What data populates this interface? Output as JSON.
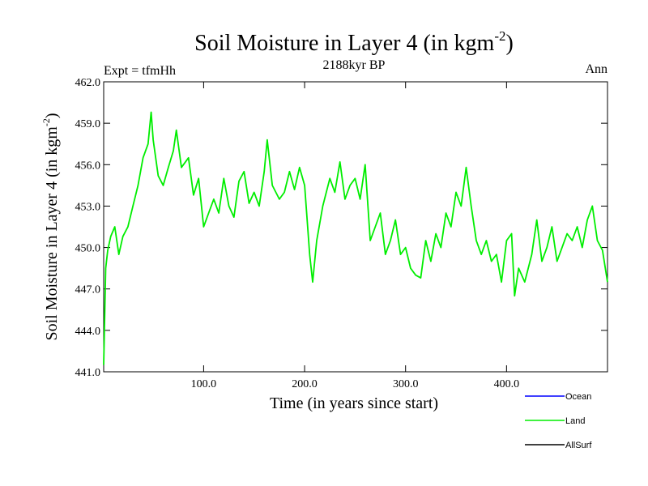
{
  "header": {
    "title_main": "Soil Moisture in Layer 4 (in kgm",
    "title_sup": "-2",
    "title_close": ")",
    "expt_label": "Expt = tfmHh",
    "period_label": "2188kyr BP",
    "season_label": "Ann"
  },
  "colors": {
    "ocean": "#0000ff",
    "land": "#00ee00",
    "allsurf": "#000000",
    "axis": "#000000"
  },
  "chart_data": {
    "type": "line",
    "title": "Soil Moisture in Layer 4 (in kgm-2)",
    "xlabel": "Time (in years since start)",
    "ylabel_main": "Soil Moisture in Layer 4 (in kgm",
    "ylabel_sup": "-2",
    "ylabel_close": ")",
    "xlim": [
      1,
      500
    ],
    "ylim": [
      441.0,
      462.0
    ],
    "x_ticks": [
      100,
      200,
      300,
      400
    ],
    "x_tick_labels": [
      "100.0",
      "200.0",
      "300.0",
      "400.0"
    ],
    "y_ticks": [
      441,
      444,
      447,
      450,
      453,
      456,
      459,
      462
    ],
    "y_tick_labels": [
      "441.0",
      "444.0",
      "447.0",
      "450.0",
      "453.0",
      "456.0",
      "459.0",
      "462.0"
    ],
    "series": [
      {
        "name": "Land",
        "color": "#00ee00",
        "x": [
          1,
          3,
          5,
          8,
          12,
          16,
          20,
          25,
          30,
          35,
          40,
          45,
          48,
          50,
          55,
          60,
          65,
          70,
          73,
          78,
          85,
          90,
          95,
          100,
          105,
          110,
          115,
          120,
          125,
          130,
          135,
          140,
          145,
          150,
          155,
          160,
          163,
          168,
          175,
          180,
          185,
          190,
          195,
          200,
          205,
          208,
          212,
          218,
          225,
          230,
          235,
          240,
          245,
          250,
          255,
          260,
          265,
          270,
          275,
          280,
          285,
          290,
          295,
          300,
          305,
          310,
          315,
          320,
          325,
          330,
          335,
          340,
          345,
          350,
          355,
          360,
          365,
          370,
          375,
          380,
          385,
          390,
          395,
          400,
          405,
          408,
          412,
          418,
          425,
          430,
          435,
          440,
          445,
          450,
          455,
          460,
          465,
          470,
          475,
          480,
          485,
          490,
          495,
          500
        ],
        "values": [
          441.5,
          448.5,
          449.8,
          450.8,
          451.5,
          449.5,
          450.8,
          451.5,
          453.0,
          454.5,
          456.5,
          457.5,
          459.8,
          457.8,
          455.2,
          454.5,
          455.8,
          457.0,
          458.5,
          455.8,
          456.5,
          453.8,
          455.0,
          451.5,
          452.5,
          453.5,
          452.5,
          455.0,
          453.0,
          452.2,
          454.8,
          455.5,
          453.2,
          454.0,
          453.0,
          455.5,
          457.8,
          454.5,
          453.5,
          454.0,
          455.5,
          454.2,
          455.8,
          454.5,
          449.5,
          447.5,
          450.5,
          453.0,
          455.0,
          454.0,
          456.2,
          453.5,
          454.5,
          455.0,
          453.5,
          456.0,
          450.5,
          451.5,
          452.5,
          449.5,
          450.5,
          452.0,
          449.5,
          450.0,
          448.5,
          448.0,
          447.8,
          450.5,
          449.0,
          451.0,
          450.0,
          452.5,
          451.5,
          454.0,
          453.0,
          455.8,
          453.0,
          450.5,
          449.5,
          450.5,
          449.0,
          449.5,
          447.5,
          450.5,
          451.0,
          446.5,
          448.5,
          447.5,
          449.5,
          452.0,
          449.0,
          450.0,
          451.5,
          449.0,
          450.0,
          451.0,
          450.5,
          451.5,
          450.0,
          452.0,
          453.0,
          450.5,
          449.8,
          447.5
        ]
      }
    ],
    "legend": {
      "placement": "bottom-right",
      "entries": [
        {
          "label": "Ocean",
          "color": "#0000ff"
        },
        {
          "label": "Land",
          "color": "#00ee00"
        },
        {
          "label": "AllSurf",
          "color": "#000000"
        }
      ]
    }
  }
}
